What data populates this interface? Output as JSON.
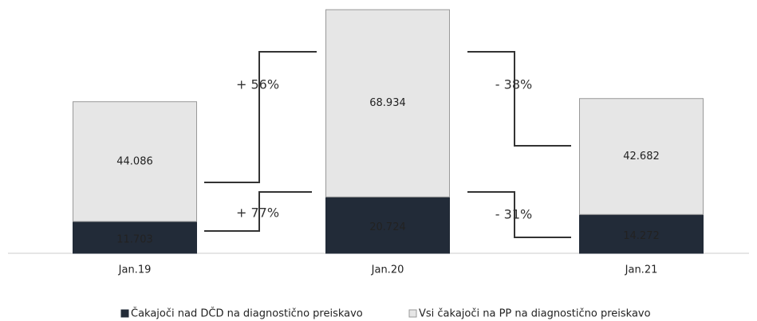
{
  "chart_data": {
    "type": "stacked_bar",
    "categories": [
      "Jan.19",
      "Jan.20",
      "Jan.21"
    ],
    "series": [
      {
        "name": "Čakajoči nad DČD na diagnostično preiskavo",
        "color": "#222b38",
        "values": [
          11703,
          20724,
          14272
        ],
        "value_labels": [
          "11.703",
          "20.724",
          "14.272"
        ]
      },
      {
        "name": "Vsi čakajoči na PP na diagnostično preiskavo",
        "color": "#e6e6e6",
        "values": [
          44086,
          68934,
          42682
        ],
        "value_labels": [
          "44.086",
          "68.934",
          "42.682"
        ]
      }
    ],
    "ylim": [
      0,
      90000
    ],
    "annotations": [
      "+ 56%",
      "+ 77%",
      "- 38%",
      "- 31%"
    ],
    "legend": "bottom"
  }
}
